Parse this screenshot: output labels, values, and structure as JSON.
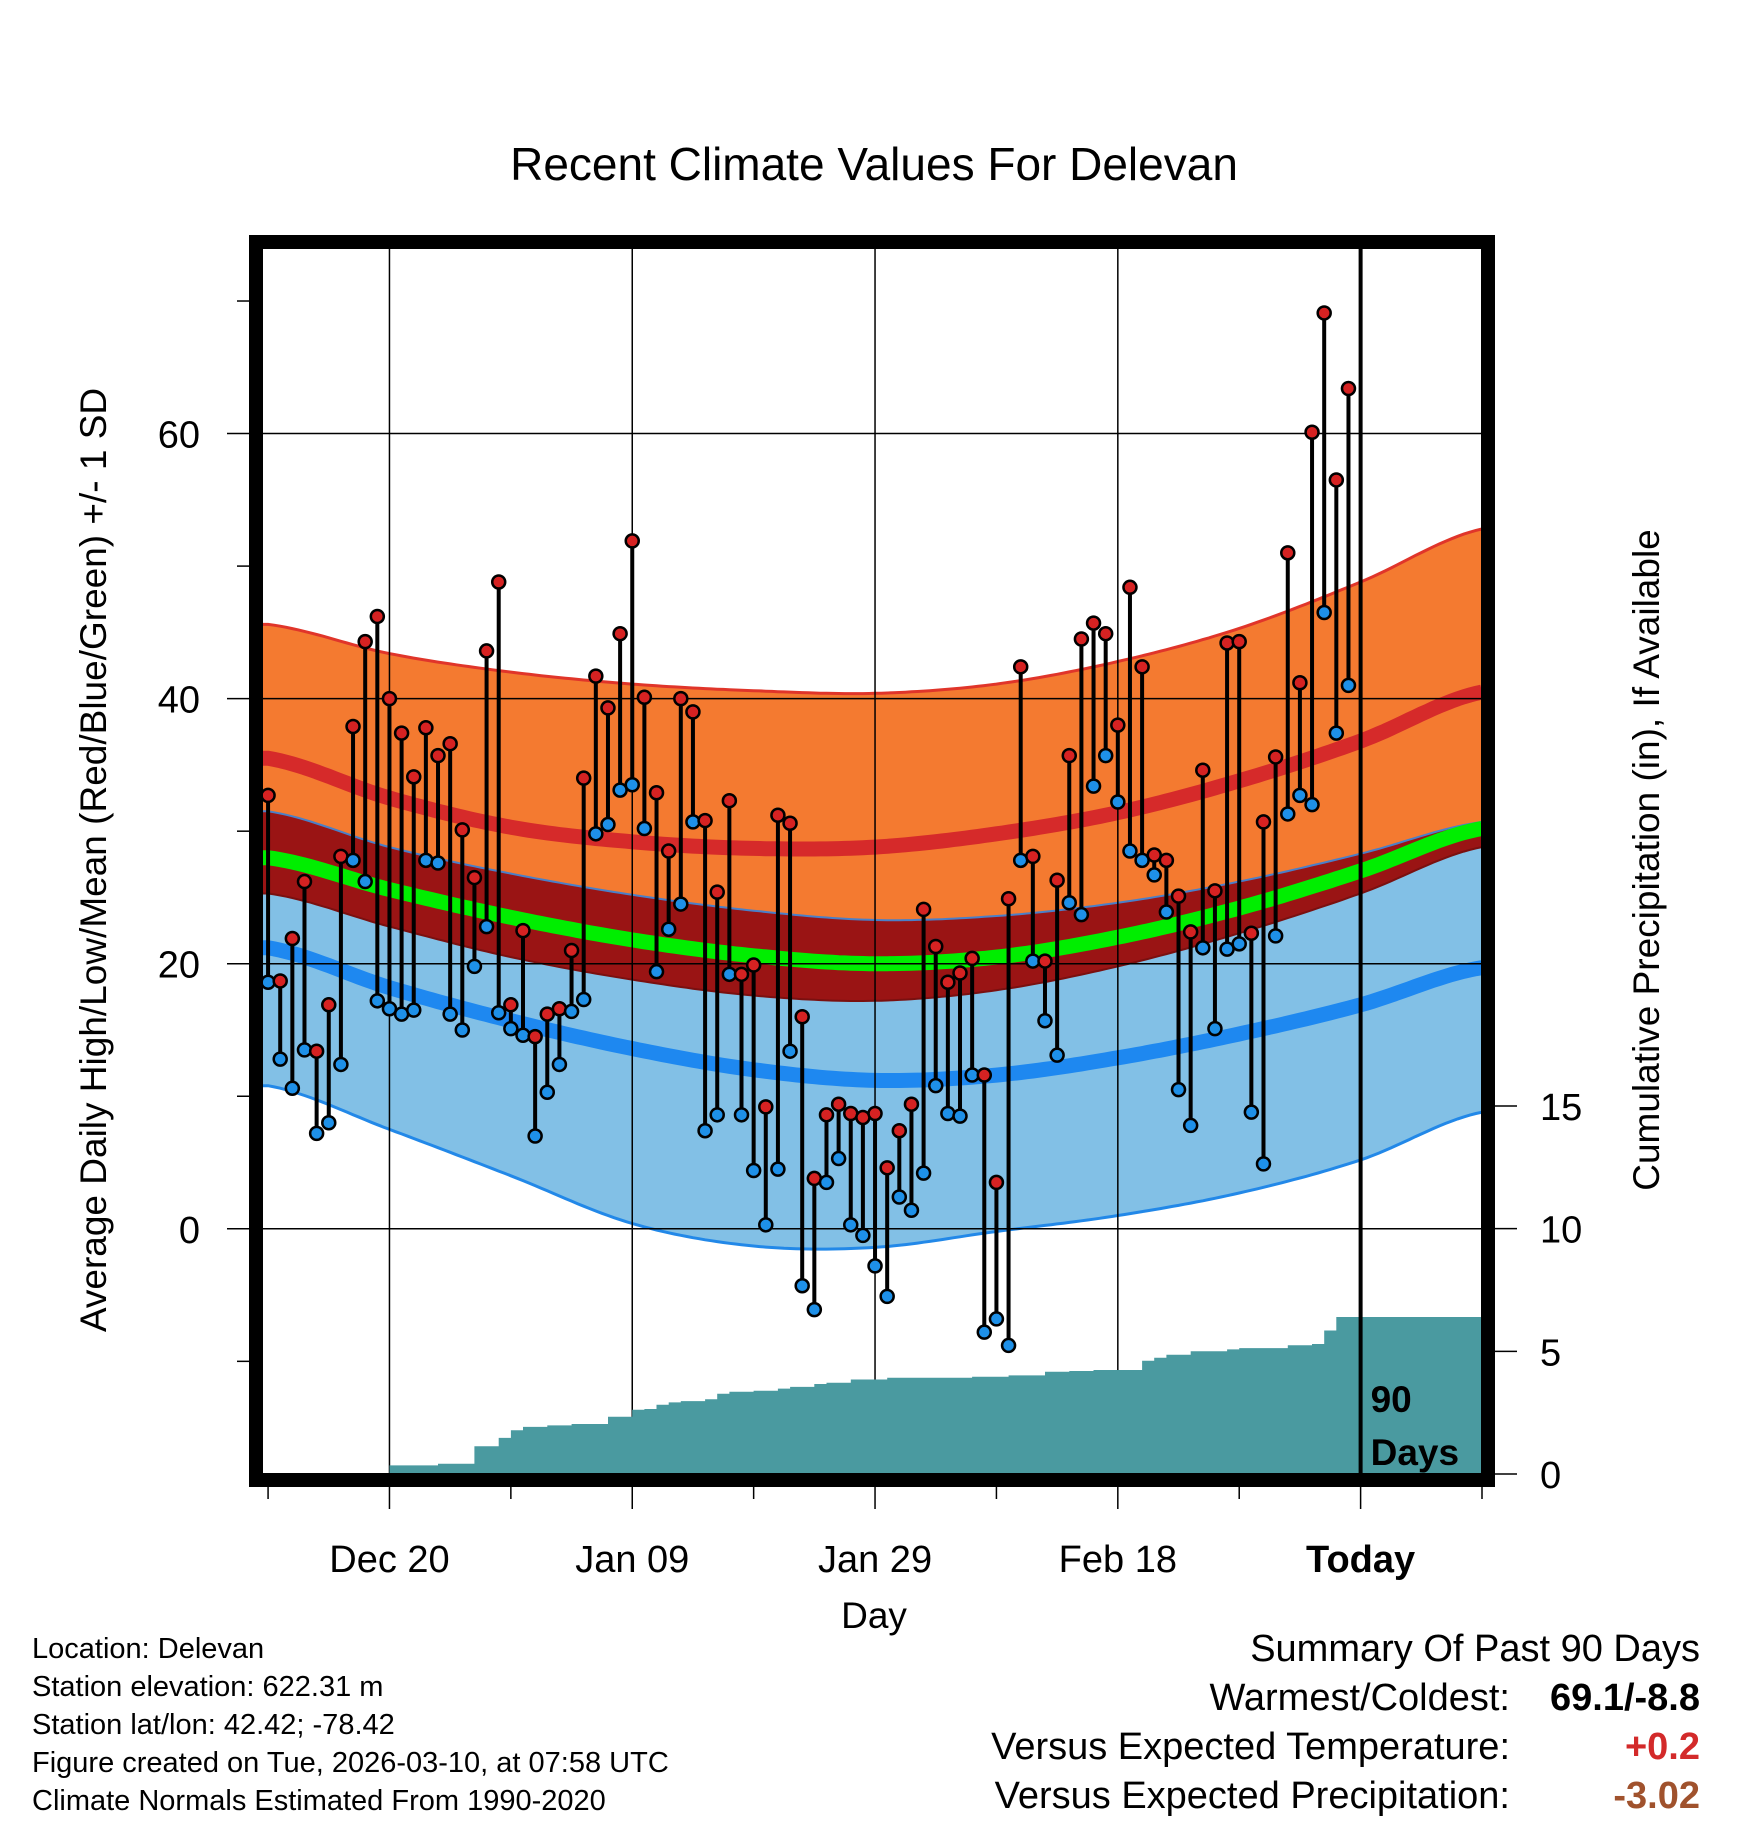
{
  "chart_data": {
    "type": "line",
    "title": "Recent Climate Values For Delevan",
    "xlabel": "Day",
    "ylabel": "Average Daily High/Low/Mean (Red/Blue/Green) +/- 1 SD",
    "y2label": "Cumulative Precipitation (in), If Available",
    "ylim": [
      -18.5,
      74
    ],
    "y2lim": [
      0,
      15
    ],
    "xlim": [
      -10.5,
      90
    ],
    "yticks": [
      "0",
      "20",
      "40",
      "60"
    ],
    "y2ticks": [
      "0",
      "5",
      "10",
      "15"
    ],
    "x_ticks": [
      {
        "day": 0,
        "label": "Dec 20"
      },
      {
        "day": 20,
        "label": "Jan 09"
      },
      {
        "day": 40,
        "label": "Jan 29"
      },
      {
        "day": 60,
        "label": "Feb 18"
      },
      {
        "day": 80,
        "label": "Today"
      }
    ],
    "period_label": "90\nDays",
    "period_days": 90,
    "normals": {
      "days": [
        -10,
        0,
        10,
        20,
        30,
        40,
        50,
        60,
        70,
        80,
        90
      ],
      "high_mean": [
        35.5,
        32.5,
        30.3,
        29.2,
        28.7,
        28.8,
        29.8,
        31.4,
        33.8,
        36.8,
        40.5
      ],
      "high_plus_sd": [
        45.6,
        43.4,
        42.0,
        41.1,
        40.6,
        40.4,
        41.1,
        42.8,
        45.3,
        48.8,
        52.8
      ],
      "high_minus_sd": [
        31.5,
        28.8,
        26.8,
        25.2,
        24.0,
        23.3,
        23.6,
        24.6,
        26.2,
        28.3,
        30.7
      ],
      "mean_mean": [
        28.0,
        25.6,
        23.5,
        21.8,
        20.6,
        20.0,
        20.5,
        22.0,
        24.2,
        27.0,
        30.2
      ],
      "low_plus_sd": [
        25.3,
        22.8,
        20.5,
        18.8,
        17.6,
        17.2,
        18.0,
        19.8,
        22.3,
        25.3,
        28.8
      ],
      "low_mean": [
        21.2,
        18.2,
        15.7,
        13.6,
        12.0,
        11.2,
        11.6,
        12.9,
        14.7,
        16.9,
        19.7
      ],
      "low_minus_sd": [
        10.8,
        7.5,
        4.0,
        0.4,
        -1.3,
        -1.4,
        -0.2,
        1.0,
        2.7,
        5.2,
        8.8
      ]
    },
    "series": [
      {
        "name": "Daily High",
        "color": "#d62222",
        "values": [
          32.7,
          18.7,
          21.9,
          26.2,
          13.4,
          16.9,
          28.1,
          37.9,
          44.3,
          46.2,
          40.0,
          37.4,
          34.1,
          37.8,
          35.7,
          36.6,
          30.1,
          26.5,
          43.6,
          48.8,
          16.9,
          22.5,
          14.5,
          16.2,
          16.6,
          21.0,
          34.0,
          41.7,
          39.3,
          44.9,
          51.9,
          40.1,
          32.9,
          28.5,
          40.0,
          39.0,
          30.8,
          25.4,
          32.3,
          19.2,
          19.9,
          9.2,
          31.2,
          30.6,
          16.0,
          3.8,
          8.6,
          9.4,
          8.7,
          8.4,
          8.7,
          4.6,
          7.4,
          9.4,
          24.1,
          21.3,
          18.6,
          19.3,
          20.4,
          11.6,
          3.5,
          24.9,
          42.4,
          28.1,
          20.2,
          26.3,
          35.7,
          44.5,
          45.7,
          44.9,
          38.0,
          48.4,
          42.4,
          28.2,
          27.8,
          25.1,
          22.4,
          34.6,
          25.5,
          44.2,
          44.3,
          22.3,
          30.7,
          35.6,
          51.0,
          41.2,
          60.1,
          69.1,
          56.5,
          63.4
        ]
      },
      {
        "name": "Daily Low",
        "color": "#1e90e8",
        "values": [
          18.6,
          12.8,
          10.6,
          13.5,
          7.2,
          8.0,
          12.4,
          27.8,
          26.2,
          17.2,
          16.6,
          16.2,
          16.5,
          27.8,
          27.6,
          16.2,
          15.0,
          19.8,
          22.8,
          16.3,
          15.1,
          14.6,
          7.0,
          10.3,
          12.4,
          16.4,
          17.3,
          29.8,
          30.5,
          33.1,
          33.5,
          30.2,
          19.4,
          22.6,
          24.5,
          30.7,
          7.4,
          8.6,
          19.2,
          8.6,
          4.4,
          0.3,
          4.5,
          13.4,
          -4.3,
          -6.1,
          3.5,
          5.3,
          0.3,
          -0.5,
          -2.8,
          -5.1,
          2.4,
          1.4,
          4.2,
          10.8,
          8.7,
          8.5,
          11.6,
          -7.8,
          -6.8,
          -8.8,
          27.8,
          20.2,
          15.7,
          13.1,
          24.6,
          23.7,
          33.4,
          35.7,
          32.2,
          28.5,
          27.8,
          26.7,
          23.9,
          10.5,
          7.8,
          21.2,
          15.1,
          21.1,
          21.5,
          8.8,
          4.9,
          22.1,
          31.3,
          32.7,
          32.0,
          46.5,
          37.4,
          41.0
        ]
      },
      {
        "name": "Cumulative Precipitation (in)",
        "color": "#4a9aa0",
        "values": [
          0,
          0,
          0,
          0,
          0,
          0,
          0.02,
          0.02,
          0.02,
          0.02,
          0.35,
          0.35,
          0.35,
          0.35,
          0.42,
          0.42,
          0.42,
          1.13,
          1.13,
          1.47,
          1.78,
          1.92,
          1.92,
          1.98,
          1.98,
          2.04,
          2.04,
          2.04,
          2.33,
          2.33,
          2.62,
          2.65,
          2.82,
          2.92,
          2.97,
          2.97,
          3.05,
          3.27,
          3.35,
          3.35,
          3.39,
          3.39,
          3.48,
          3.55,
          3.55,
          3.67,
          3.72,
          3.72,
          3.85,
          3.85,
          3.85,
          3.92,
          3.92,
          3.92,
          3.92,
          3.92,
          3.92,
          3.92,
          3.96,
          3.96,
          3.96,
          4.02,
          4.02,
          4.02,
          4.17,
          4.17,
          4.2,
          4.2,
          4.24,
          4.24,
          4.24,
          4.24,
          4.62,
          4.74,
          4.86,
          4.86,
          5.0,
          5.0,
          5.0,
          5.08,
          5.13,
          5.13,
          5.13,
          5.13,
          5.25,
          5.25,
          5.3,
          5.85,
          6.4,
          6.4,
          6.4,
          6.4,
          6.4,
          6.4,
          6.4,
          6.4,
          6.4,
          6.4,
          6.4,
          6.4,
          6.4
        ]
      }
    ]
  },
  "info": {
    "location": "Location: Delevan",
    "elevation": "Station elevation: 622.31 m",
    "latlon": "Station lat/lon: 42.42; -78.42",
    "created": "Figure created on Tue, 2026-03-10, at 07:58 UTC",
    "normals": "Climate Normals Estimated From 1990-2020"
  },
  "summary": {
    "title": "Summary Of Past 90 Days",
    "warmest_label": "Warmest/Coldest:",
    "warmest_value": "69.1/-8.8",
    "temp_label": "Versus Expected Temperature:",
    "temp_value": "+0.2",
    "precip_label": "Versus Expected Precipitation:",
    "precip_value": "-3.02"
  }
}
